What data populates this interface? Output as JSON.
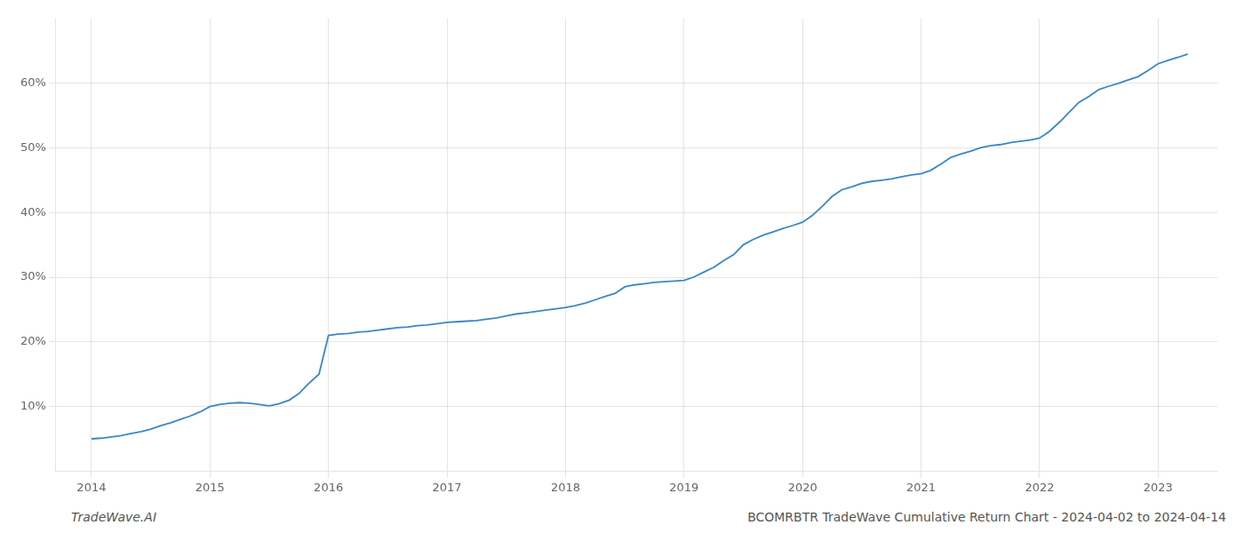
{
  "chart_data": {
    "type": "line",
    "x": [
      2014.0,
      2014.08,
      2014.17,
      2014.25,
      2014.33,
      2014.42,
      2014.5,
      2014.58,
      2014.67,
      2014.75,
      2014.83,
      2014.92,
      2015.0,
      2015.08,
      2015.17,
      2015.25,
      2015.33,
      2015.42,
      2015.5,
      2015.58,
      2015.67,
      2015.75,
      2015.83,
      2015.92,
      2016.0,
      2016.08,
      2016.17,
      2016.25,
      2016.33,
      2016.42,
      2016.5,
      2016.58,
      2016.67,
      2016.75,
      2016.83,
      2016.92,
      2017.0,
      2017.08,
      2017.17,
      2017.25,
      2017.33,
      2017.42,
      2017.5,
      2017.58,
      2017.67,
      2017.75,
      2017.83,
      2017.92,
      2018.0,
      2018.08,
      2018.17,
      2018.25,
      2018.33,
      2018.42,
      2018.5,
      2018.58,
      2018.67,
      2018.75,
      2018.83,
      2018.92,
      2019.0,
      2019.08,
      2019.17,
      2019.25,
      2019.33,
      2019.42,
      2019.5,
      2019.58,
      2019.67,
      2019.75,
      2019.83,
      2019.92,
      2020.0,
      2020.08,
      2020.17,
      2020.25,
      2020.33,
      2020.42,
      2020.5,
      2020.58,
      2020.67,
      2020.75,
      2020.83,
      2020.92,
      2021.0,
      2021.08,
      2021.17,
      2021.25,
      2021.33,
      2021.42,
      2021.5,
      2021.58,
      2021.67,
      2021.75,
      2021.83,
      2021.92,
      2022.0,
      2022.08,
      2022.17,
      2022.25,
      2022.33,
      2022.42,
      2022.5,
      2022.58,
      2022.67,
      2022.75,
      2022.83,
      2022.92,
      2023.0,
      2023.08,
      2023.17,
      2023.25
    ],
    "values": [
      5.0,
      5.1,
      5.3,
      5.5,
      5.8,
      6.1,
      6.5,
      7.0,
      7.5,
      8.0,
      8.5,
      9.2,
      10.0,
      10.3,
      10.5,
      10.6,
      10.5,
      10.3,
      10.1,
      10.4,
      11.0,
      12.0,
      13.5,
      15.0,
      21.0,
      21.2,
      21.3,
      21.5,
      21.6,
      21.8,
      22.0,
      22.2,
      22.3,
      22.5,
      22.6,
      22.8,
      23.0,
      23.1,
      23.2,
      23.3,
      23.5,
      23.7,
      24.0,
      24.3,
      24.5,
      24.7,
      24.9,
      25.1,
      25.3,
      25.6,
      26.0,
      26.5,
      27.0,
      27.5,
      28.5,
      28.8,
      29.0,
      29.2,
      29.3,
      29.4,
      29.5,
      30.0,
      30.8,
      31.5,
      32.5,
      33.5,
      35.0,
      35.8,
      36.5,
      37.0,
      37.5,
      38.0,
      38.5,
      39.5,
      41.0,
      42.5,
      43.5,
      44.0,
      44.5,
      44.8,
      45.0,
      45.2,
      45.5,
      45.8,
      46.0,
      46.5,
      47.5,
      48.5,
      49.0,
      49.5,
      50.0,
      50.3,
      50.5,
      50.8,
      51.0,
      51.2,
      51.5,
      52.5,
      54.0,
      55.5,
      57.0,
      58.0,
      59.0,
      59.5,
      60.0,
      60.5,
      61.0,
      62.0,
      63.0,
      63.5,
      64.0,
      64.5
    ],
    "color": "#3a87c8",
    "xlim": [
      2013.7,
      2023.5
    ],
    "xticks": [
      2014,
      2015,
      2016,
      2017,
      2018,
      2019,
      2020,
      2021,
      2022,
      2023
    ],
    "ylim": [
      0,
      70
    ],
    "yticks": [
      {
        "value": 10,
        "label": "10%"
      },
      {
        "value": 20,
        "label": "20%"
      },
      {
        "value": 30,
        "label": "30%"
      },
      {
        "value": 40,
        "label": "40%"
      },
      {
        "value": 50,
        "label": "50%"
      },
      {
        "value": 60,
        "label": "60%"
      }
    ],
    "grid": true,
    "annotations": [
      "TradeWave.AI",
      "BCOMRBTR TradeWave Cumulative Return Chart - 2024-04-02 to 2024-04-14"
    ]
  }
}
